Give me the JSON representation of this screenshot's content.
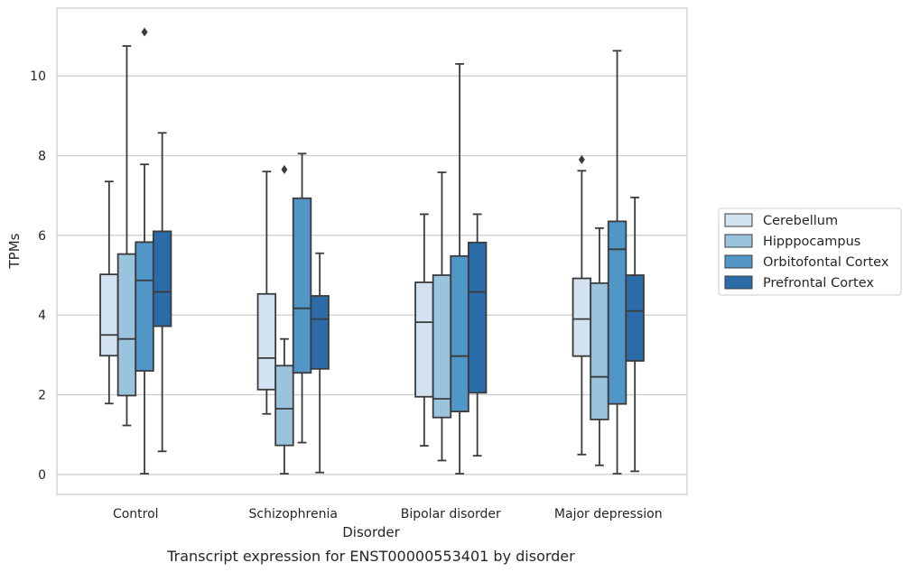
{
  "chart_data": {
    "type": "boxplot",
    "caption": "Transcript expression for ENST00000553401 by disorder",
    "xlabel": "Disorder",
    "ylabel": "TPMs",
    "ylim": [
      -0.5,
      11.7
    ],
    "yticks": [
      0,
      2,
      4,
      6,
      8,
      10
    ],
    "grid": "horizontal",
    "legend_position": "right",
    "categories": [
      "Control",
      "Schizophrenia",
      "Bipolar disorder",
      "Major depression"
    ],
    "series": [
      {
        "name": "Cerebellum",
        "color": "#d2e2f1",
        "boxes": [
          {
            "whislo": 1.78,
            "q1": 2.98,
            "med": 3.5,
            "q3": 5.02,
            "whishi": 7.35,
            "fliers": []
          },
          {
            "whislo": 1.52,
            "q1": 2.13,
            "med": 2.92,
            "q3": 4.53,
            "whishi": 7.6,
            "fliers": []
          },
          {
            "whislo": 0.72,
            "q1": 1.95,
            "med": 3.82,
            "q3": 4.82,
            "whishi": 6.53,
            "fliers": []
          },
          {
            "whislo": 0.5,
            "q1": 2.97,
            "med": 3.9,
            "q3": 4.92,
            "whishi": 7.62,
            "fliers": [
              7.9
            ]
          }
        ]
      },
      {
        "name": "Hipppocampus",
        "color": "#9ac3de",
        "boxes": [
          {
            "whislo": 1.23,
            "q1": 1.98,
            "med": 3.4,
            "q3": 5.53,
            "whishi": 10.75,
            "fliers": []
          },
          {
            "whislo": 0.02,
            "q1": 0.73,
            "med": 1.65,
            "q3": 2.73,
            "whishi": 3.4,
            "fliers": [
              7.65
            ]
          },
          {
            "whislo": 0.35,
            "q1": 1.43,
            "med": 1.9,
            "q3": 5.0,
            "whishi": 7.58,
            "fliers": []
          },
          {
            "whislo": 0.23,
            "q1": 1.38,
            "med": 2.45,
            "q3": 4.8,
            "whishi": 6.18,
            "fliers": []
          }
        ]
      },
      {
        "name": "Orbitofontal Cortex",
        "color": "#5096c7",
        "boxes": [
          {
            "whislo": 0.02,
            "q1": 2.6,
            "med": 4.87,
            "q3": 5.83,
            "whishi": 7.78,
            "fliers": [
              11.1
            ]
          },
          {
            "whislo": 0.8,
            "q1": 2.55,
            "med": 4.17,
            "q3": 6.93,
            "whishi": 8.05,
            "fliers": []
          },
          {
            "whislo": 0.02,
            "q1": 1.58,
            "med": 2.97,
            "q3": 5.48,
            "whishi": 10.3,
            "fliers": []
          },
          {
            "whislo": 0.02,
            "q1": 1.77,
            "med": 5.65,
            "q3": 6.35,
            "whishi": 10.63,
            "fliers": []
          }
        ]
      },
      {
        "name": "Prefrontal Cortex",
        "color": "#2a6ba8",
        "boxes": [
          {
            "whislo": 0.58,
            "q1": 3.72,
            "med": 4.58,
            "q3": 6.1,
            "whishi": 8.57,
            "fliers": []
          },
          {
            "whislo": 0.05,
            "q1": 2.65,
            "med": 3.9,
            "q3": 4.48,
            "whishi": 5.55,
            "fliers": []
          },
          {
            "whislo": 0.47,
            "q1": 2.05,
            "med": 4.58,
            "q3": 5.82,
            "whishi": 6.53,
            "fliers": []
          },
          {
            "whislo": 0.08,
            "q1": 2.85,
            "med": 4.1,
            "q3": 5.0,
            "whishi": 6.95,
            "fliers": []
          }
        ]
      }
    ]
  }
}
